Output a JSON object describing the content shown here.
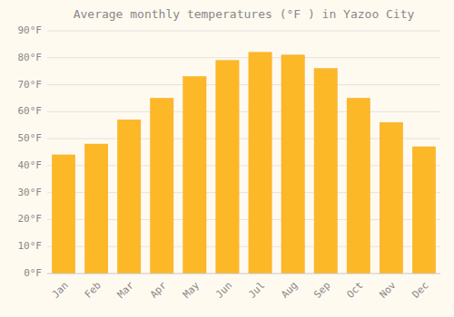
{
  "chart_data": {
    "type": "bar",
    "title": "Average monthly temperatures (°F ) in Yazoo City",
    "categories": [
      "Jan",
      "Feb",
      "Mar",
      "Apr",
      "May",
      "Jun",
      "Jul",
      "Aug",
      "Sep",
      "Oct",
      "Nov",
      "Dec"
    ],
    "values": [
      44,
      48,
      57,
      65,
      73,
      79,
      82,
      81,
      76,
      65,
      56,
      47
    ],
    "color": "#FDB827",
    "ylim": [
      0,
      90
    ],
    "yticks": [
      {
        "value": 0,
        "label": "0°F"
      },
      {
        "value": 10,
        "label": "10°F"
      },
      {
        "value": 20,
        "label": "20°F"
      },
      {
        "value": 30,
        "label": "30°F"
      },
      {
        "value": 40,
        "label": "40°F"
      },
      {
        "value": 50,
        "label": "50°F"
      },
      {
        "value": 60,
        "label": "60°F"
      },
      {
        "value": 70,
        "label": "70°F"
      },
      {
        "value": 80,
        "label": "80°F"
      },
      {
        "value": 90,
        "label": "90°F"
      }
    ],
    "grid": true
  }
}
